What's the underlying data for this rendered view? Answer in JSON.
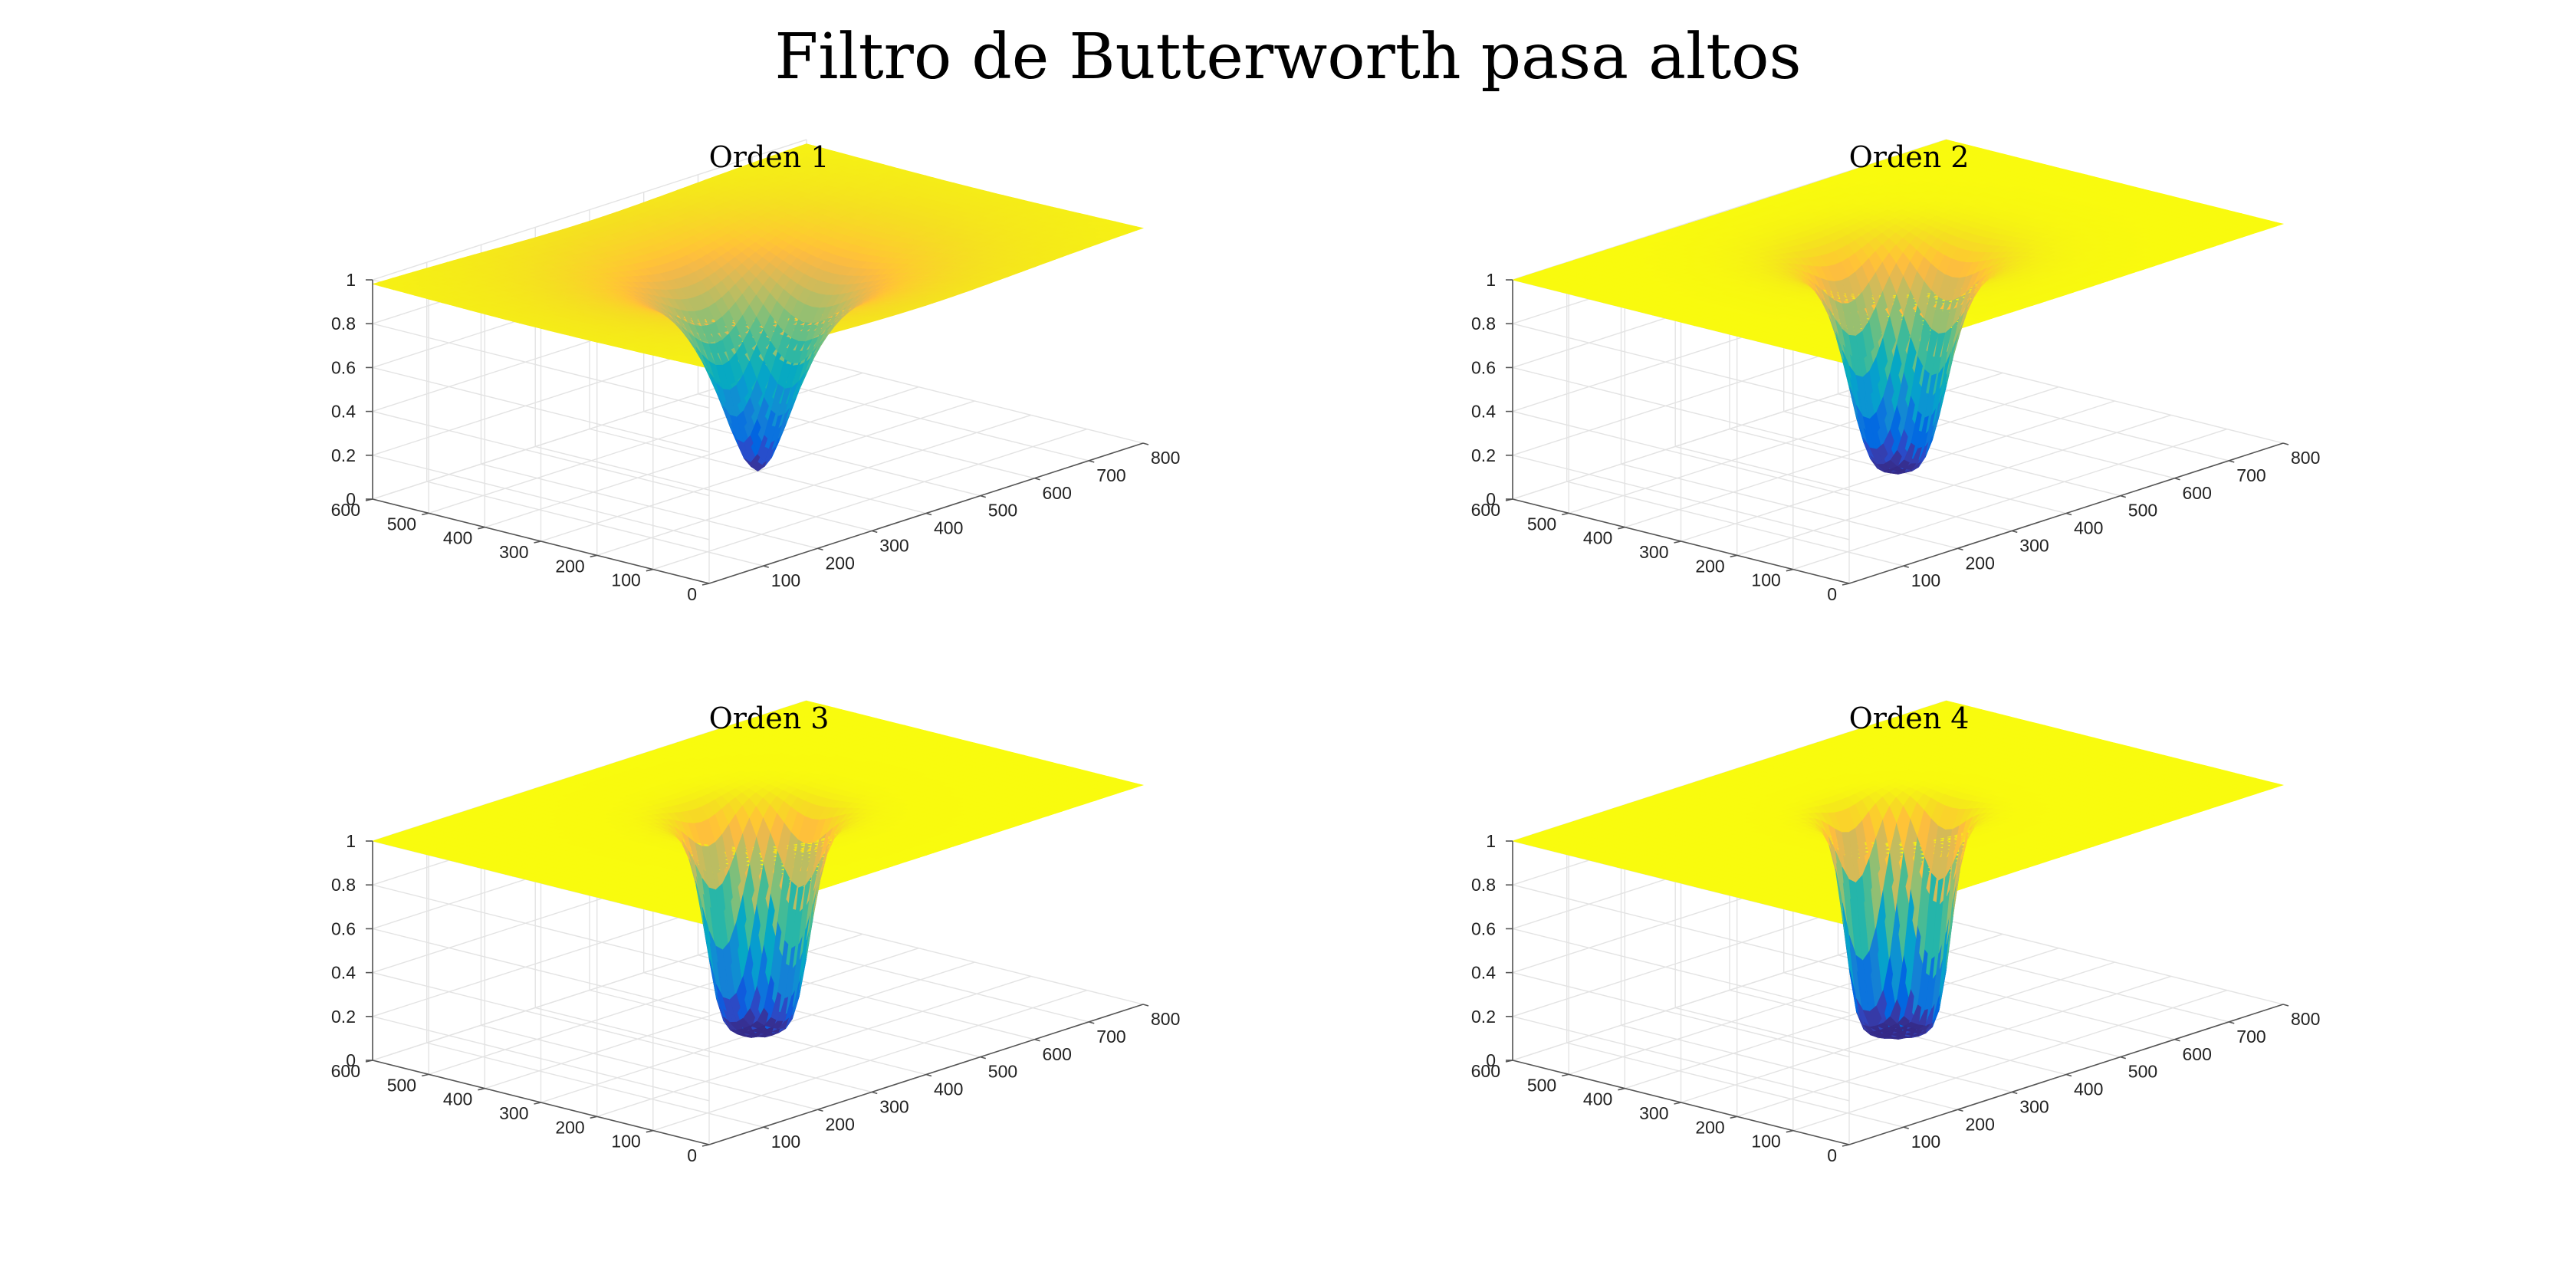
{
  "figure": {
    "title": "Filtro de Butterworth pasa altos"
  },
  "chart_data": [
    {
      "type": "surface",
      "title": "Orden 1",
      "order": 1,
      "function": "H(u,v) = 1 / (1 + (D0 / D(u,v))^(2n))",
      "cutoff_D0": 70,
      "center": [
        400,
        300
      ],
      "xlim": [
        0,
        800
      ],
      "ylim": [
        0,
        600
      ],
      "zlim": [
        0,
        1
      ],
      "xticks": [
        100,
        200,
        300,
        400,
        500,
        600,
        700,
        800
      ],
      "yticks": [
        0,
        100,
        200,
        300,
        400,
        500,
        600
      ],
      "zticks": [
        0,
        0.2,
        0.4,
        0.6,
        0.8,
        1
      ],
      "grid": true,
      "colormap": "parula"
    },
    {
      "type": "surface",
      "title": "Orden 2",
      "order": 2,
      "function": "H(u,v) = 1 / (1 + (D0 / D(u,v))^(2n))",
      "cutoff_D0": 70,
      "center": [
        400,
        300
      ],
      "xlim": [
        0,
        800
      ],
      "ylim": [
        0,
        600
      ],
      "zlim": [
        0,
        1
      ],
      "xticks": [
        100,
        200,
        300,
        400,
        500,
        600,
        700,
        800
      ],
      "yticks": [
        0,
        100,
        200,
        300,
        400,
        500,
        600
      ],
      "zticks": [
        0,
        0.2,
        0.4,
        0.6,
        0.8,
        1
      ],
      "grid": true,
      "colormap": "parula"
    },
    {
      "type": "surface",
      "title": "Orden 3",
      "order": 3,
      "function": "H(u,v) = 1 / (1 + (D0 / D(u,v))^(2n))",
      "cutoff_D0": 70,
      "center": [
        400,
        300
      ],
      "xlim": [
        0,
        800
      ],
      "ylim": [
        0,
        600
      ],
      "zlim": [
        0,
        1
      ],
      "xticks": [
        100,
        200,
        300,
        400,
        500,
        600,
        700,
        800
      ],
      "yticks": [
        0,
        100,
        200,
        300,
        400,
        500,
        600
      ],
      "zticks": [
        0,
        0.2,
        0.4,
        0.6,
        0.8,
        1
      ],
      "grid": true,
      "colormap": "parula"
    },
    {
      "type": "surface",
      "title": "Orden 4",
      "order": 4,
      "function": "H(u,v) = 1 / (1 + (D0 / D(u,v))^(2n))",
      "cutoff_D0": 70,
      "center": [
        400,
        300
      ],
      "xlim": [
        0,
        800
      ],
      "ylim": [
        0,
        600
      ],
      "zlim": [
        0,
        1
      ],
      "xticks": [
        100,
        200,
        300,
        400,
        500,
        600,
        700,
        800
      ],
      "yticks": [
        0,
        100,
        200,
        300,
        400,
        500,
        600
      ],
      "zticks": [
        0,
        0.2,
        0.4,
        0.6,
        0.8,
        1
      ],
      "grid": true,
      "colormap": "parula"
    }
  ]
}
